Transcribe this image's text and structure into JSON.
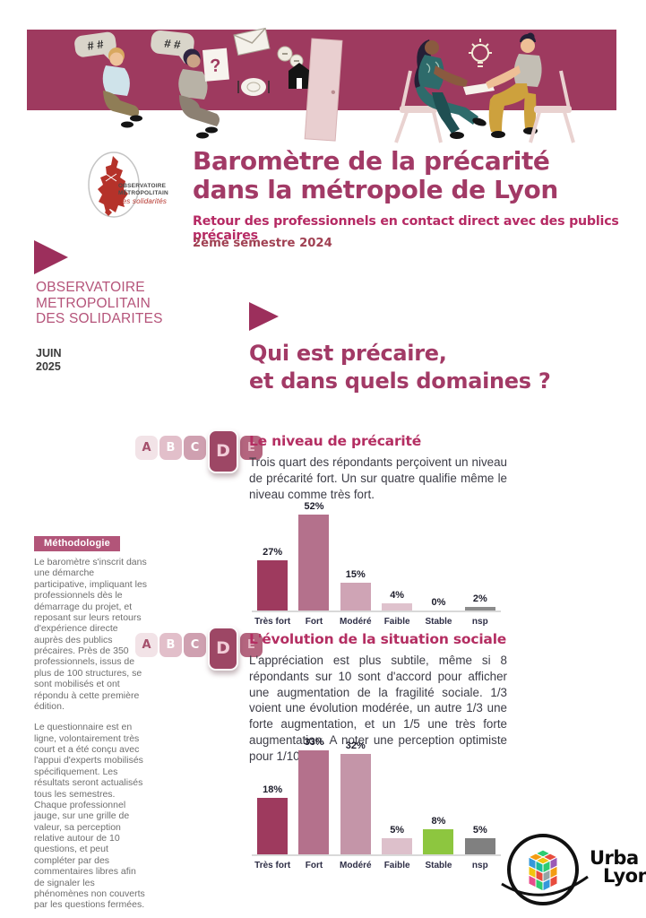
{
  "header": {
    "title_line1": "Baromètre de la précarité",
    "title_line2": "dans la métropole de Lyon",
    "subtitle": "Retour des professionnels en contact direct avec des publics précaires",
    "edition": "2ème semestre 2024",
    "logo": {
      "line1": "OBSERVATOIRE",
      "line2": "MÉTROPOLITAIN",
      "line3": "des solidarités"
    }
  },
  "banner": {
    "bubble1": "# #",
    "bubble2": "# #",
    "question_mark": "?"
  },
  "sidebar": {
    "org_line1": "OBSERVATOIRE",
    "org_line2": "METROPOLITAIN",
    "org_line3": "DES SOLIDARITES",
    "date_line1": "JUIN",
    "date_line2": "2025",
    "methodology": {
      "title": "Méthodologie",
      "para1": "Le baromètre s'inscrit dans une démarche participative, impliquant les professionnels dès le démarrage du projet, et reposant sur leurs retours d'expérience directe auprès des publics précaires. Près de 350 professionnels, issus de plus de 100 structures, se sont mobilisés et ont répondu à cette première édition.",
      "para2": "Le questionnaire est en ligne, volontairement très court et a été conçu avec l'appui d'experts mobilisés spécifiquement. Les résultats seront actualisés tous les semestres. Chaque professionnel jauge, sur une grille de valeur, sa perception relative autour de 10 questions, et peut compléter par des commentaires libres afin de signaler les phénomènes non couverts par les questions fermées."
    }
  },
  "main": {
    "heading_line1": "Qui est précaire,",
    "heading_line2": "et dans quels domaines ?",
    "rating_scale": [
      "A",
      "B",
      "C",
      "D",
      "E"
    ],
    "sections": [
      {
        "title": "Le niveau de précarité",
        "body": "Trois quart des répondants perçoivent un niveau de précarité fort. Un sur quatre qualifie même le niveau comme très fort."
      },
      {
        "title": "L'évolution de la situation sociale",
        "body": "L'appréciation est plus subtile, même si 8 répondants sur 10 sont d'accord pour afficher une augmentation de la fragilité sociale. 1/3 voient une évolution modérée, un autre 1/3 une forte augmentation, et un 1/5 une très forte augmentation. A noter une perception optimiste pour 1/10."
      }
    ]
  },
  "chart_data": [
    {
      "type": "bar",
      "title": "Le niveau de précarité",
      "categories": [
        "Très fort",
        "Fort",
        "Modéré",
        "Faible",
        "Stable",
        "nsp"
      ],
      "values": [
        27,
        52,
        15,
        4,
        0,
        2
      ],
      "value_labels": [
        "27%",
        "52%",
        "15%",
        "4%",
        "0%",
        "2%"
      ],
      "bar_colors": [
        "#9e3a5e",
        "#b4718c",
        "#cfa4b5",
        "#dfc2cd",
        "#b7b7b7",
        "#8c8c8c"
      ],
      "xlabel": "",
      "ylabel": "",
      "ylim": [
        0,
        60
      ],
      "grid": false,
      "legend": false
    },
    {
      "type": "bar",
      "title": "L'évolution de la situation sociale",
      "categories": [
        "Très fort",
        "Fort",
        "Modéré",
        "Faible",
        "Stable",
        "nsp"
      ],
      "values": [
        18,
        33,
        32,
        5,
        8,
        5
      ],
      "value_labels": [
        "18%",
        "33%",
        "32%",
        "5%",
        "8%",
        "5%"
      ],
      "bar_colors": [
        "#9e3a5e",
        "#b4718c",
        "#c495a8",
        "#ddc0cb",
        "#8dc63f",
        "#808080"
      ],
      "xlabel": "",
      "ylabel": "",
      "ylim": [
        0,
        40
      ],
      "grid": false,
      "legend": false
    }
  ],
  "footer": {
    "logo_line1": "Urba",
    "logo_line2": "Lyon"
  },
  "colors": {
    "banner_bg": "#9e3a5f",
    "title": "#a23a66",
    "accent_pink": "#b62a64",
    "sidebar_pink": "#b5547a",
    "stable_green": "#8dc63f",
    "nsp_gray": "#808080"
  }
}
